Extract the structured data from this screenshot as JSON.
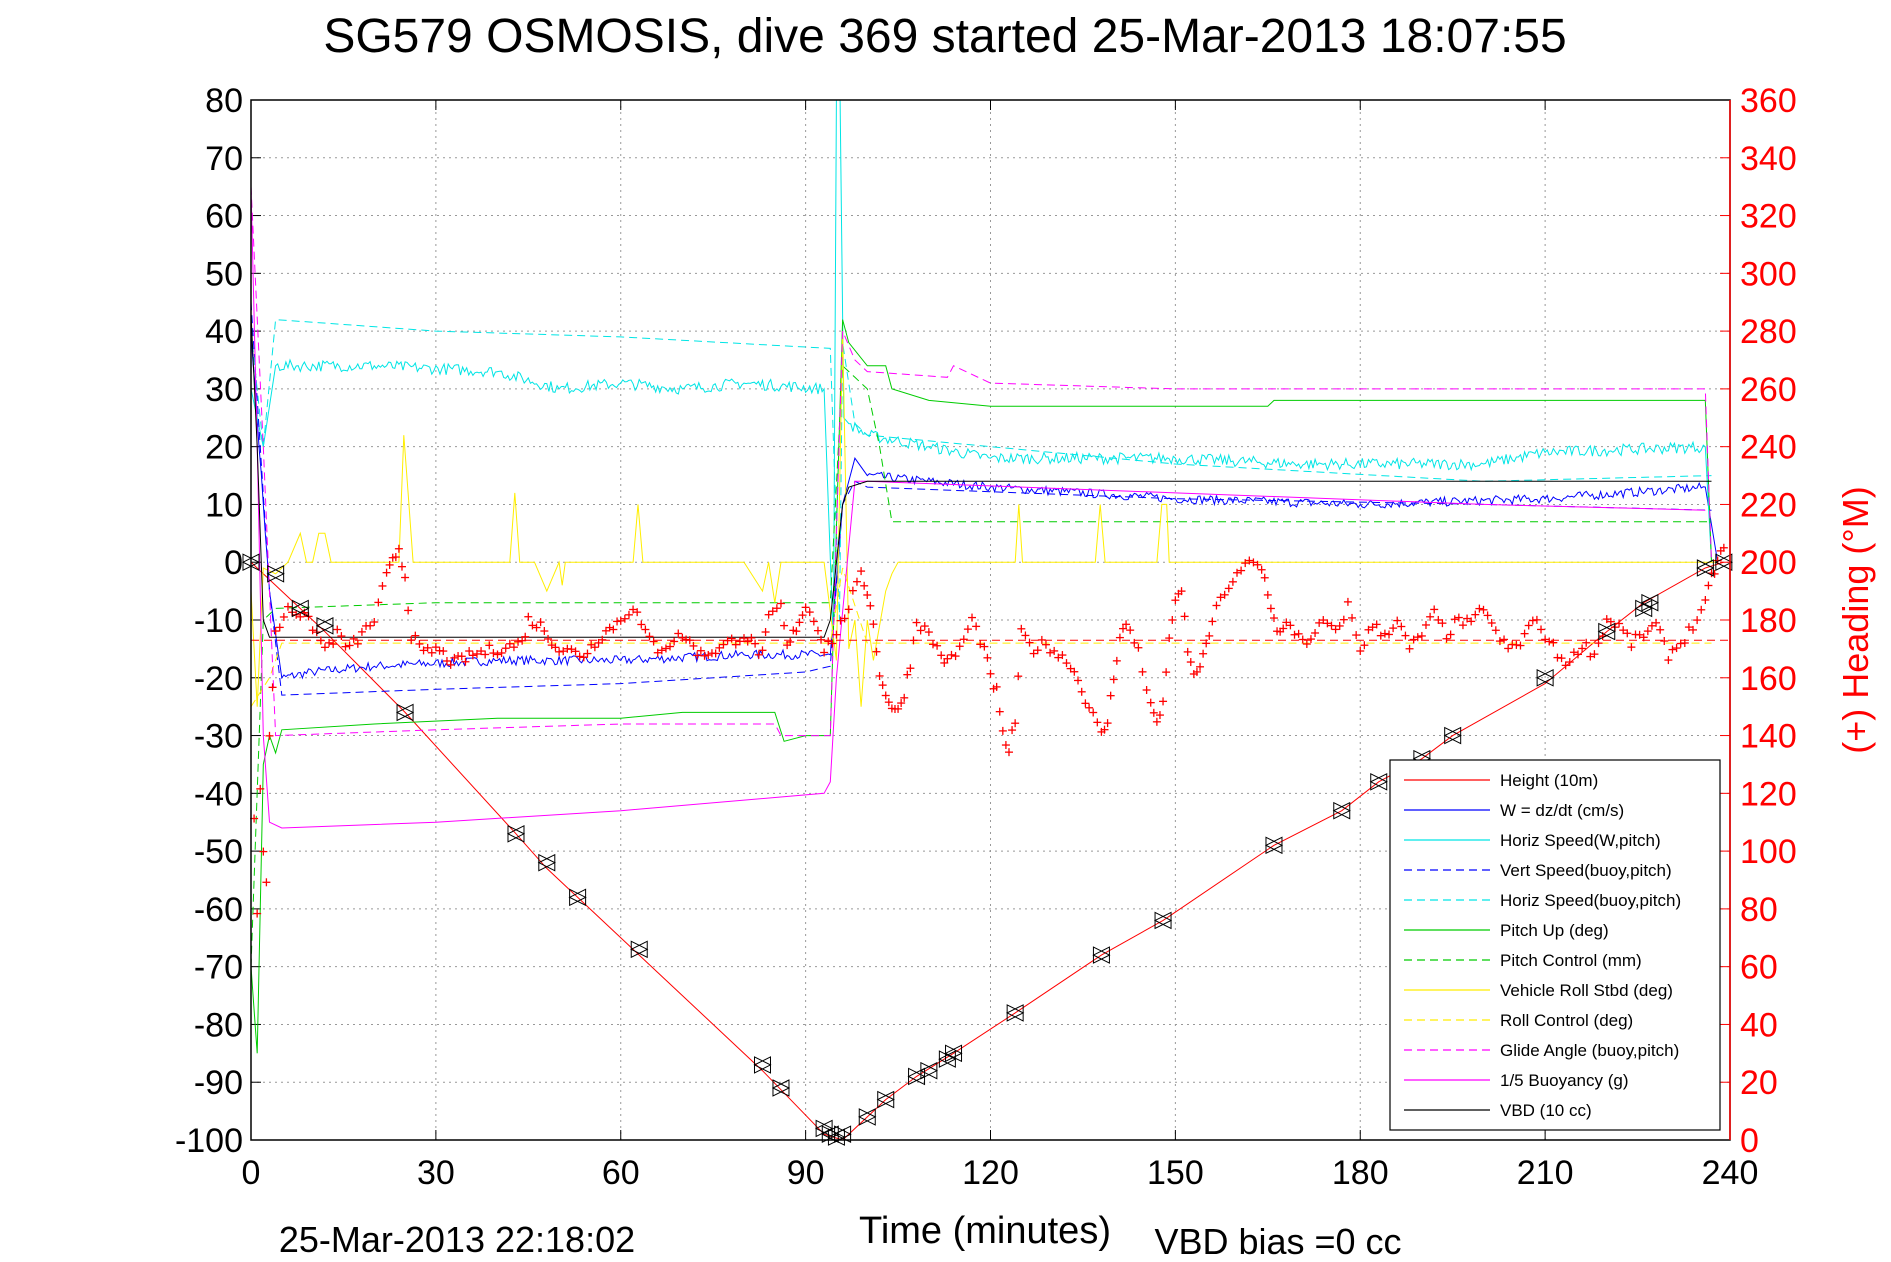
{
  "chart_data": {
    "type": "line",
    "title": "SG579 OSMOSIS, dive 369 started 25-Mar-2013 18:07:55",
    "xlabel": "Time (minutes)",
    "ylabel_right": "(+) Heading (°M)",
    "footer_left": "25-Mar-2013 22:18:02",
    "footer_right": "VBD bias =0 cc",
    "xlim": [
      0,
      240
    ],
    "ylim": [
      -100,
      80
    ],
    "ylim_right": [
      0,
      360
    ],
    "x_ticks": [
      "0",
      "30",
      "60",
      "90",
      "120",
      "150",
      "180",
      "210",
      "240"
    ],
    "y_ticks": [
      "80",
      "70",
      "60",
      "50",
      "40",
      "30",
      "20",
      "10",
      "0",
      "-10",
      "-20",
      "-30",
      "-40",
      "-50",
      "-60",
      "-70",
      "-80",
      "-90",
      "-100"
    ],
    "y_ticks_right": [
      "360",
      "340",
      "320",
      "300",
      "280",
      "260",
      "240",
      "220",
      "200",
      "180",
      "160",
      "140",
      "120",
      "100",
      "80",
      "60",
      "40",
      "20",
      "0"
    ],
    "grid": true,
    "legend_position": "bottom-right",
    "legend": [
      {
        "label": "Height (10m)",
        "color": "#ff0000",
        "dash": "solid"
      },
      {
        "label": "W = dz/dt (cm/s)",
        "color": "#0000ff",
        "dash": "solid"
      },
      {
        "label": "Horiz Speed(W,pitch)",
        "color": "#00e5e5",
        "dash": "solid"
      },
      {
        "label": "Vert Speed(buoy,pitch)",
        "color": "#0000ff",
        "dash": "dashed"
      },
      {
        "label": "Horiz Speed(buoy,pitch)",
        "color": "#00e5e5",
        "dash": "dashed"
      },
      {
        "label": "Pitch Up (deg)",
        "color": "#00cc00",
        "dash": "solid"
      },
      {
        "label": "Pitch Control (mm)",
        "color": "#00cc00",
        "dash": "dashed"
      },
      {
        "label": "Vehicle Roll Stbd (deg)",
        "color": "#ffee00",
        "dash": "solid"
      },
      {
        "label": "Roll Control (deg)",
        "color": "#ffee00",
        "dash": "dashed"
      },
      {
        "label": "Glide Angle (buoy,pitch)",
        "color": "#ff00ff",
        "dash": "dashed"
      },
      {
        "label": "1/5 Buoyancy (g)",
        "color": "#ff00ff",
        "dash": "solid"
      },
      {
        "label": "VBD (10 cc)",
        "color": "#000000",
        "dash": "solid"
      }
    ],
    "series": [
      {
        "key": "height",
        "color": "#ff0000",
        "dash": "solid",
        "width": 1,
        "x": [
          0,
          12,
          25,
          43,
          48,
          53,
          63,
          83,
          93,
          96,
          100,
          103,
          108,
          114,
          124,
          138,
          148,
          166,
          177,
          183,
          190,
          195,
          210,
          220,
          226,
          236,
          239
        ],
        "y": [
          0,
          -12,
          -26,
          -47,
          -53,
          -58,
          -68,
          -88,
          -99,
          -100,
          -96,
          -93,
          -89,
          -85,
          -78,
          -68,
          -62,
          -49,
          -43,
          -38,
          -34,
          -30,
          -21,
          -12,
          -7,
          -1,
          0
        ]
      },
      {
        "key": "w",
        "color": "#0000ff",
        "dash": "solid",
        "width": 1,
        "noise": 0.8,
        "x": [
          0,
          3,
          5,
          10,
          20,
          40,
          60,
          80,
          94,
          96,
          98,
          100,
          120,
          150,
          180,
          210,
          236,
          238
        ],
        "y": [
          40,
          -5,
          -20,
          -19,
          -18,
          -17,
          -17,
          -16,
          -16,
          10,
          18,
          15,
          13,
          11,
          10,
          11,
          13,
          0
        ]
      },
      {
        "key": "horiz_w",
        "color": "#00e5e5",
        "dash": "solid",
        "width": 1,
        "noise": 1.0,
        "x": [
          0,
          2,
          4,
          20,
          40,
          50,
          60,
          70,
          80,
          93,
          94.5,
          95,
          95.6,
          96.2,
          97,
          100,
          110,
          120,
          150,
          170,
          200,
          210,
          236,
          237
        ],
        "y": [
          30,
          20,
          34,
          34,
          33,
          30,
          31,
          30,
          31,
          30,
          -14,
          80,
          80,
          25,
          24,
          22,
          20,
          18,
          18,
          17,
          17,
          19,
          20,
          0
        ]
      },
      {
        "key": "vert_buoy",
        "color": "#0000ff",
        "dash": "dashed",
        "width": 1,
        "x": [
          0,
          3,
          5,
          30,
          60,
          90,
          94,
          96,
          98,
          100,
          150,
          200,
          237
        ],
        "y": [
          45,
          -5,
          -23,
          -22,
          -21,
          -19,
          -18,
          10,
          14,
          13,
          11,
          10,
          9
        ]
      },
      {
        "key": "horiz_buoy",
        "color": "#00e5e5",
        "dash": "dashed",
        "width": 1,
        "x": [
          0,
          2,
          4,
          30,
          60,
          94,
          95.5,
          96,
          98,
          100,
          150,
          200,
          237
        ],
        "y": [
          40,
          20,
          42,
          40,
          39,
          37,
          -10,
          38,
          24,
          22,
          17,
          14,
          15
        ]
      },
      {
        "key": "pitch",
        "color": "#00cc00",
        "dash": "solid",
        "width": 1,
        "x": [
          0,
          1,
          2,
          3,
          4,
          5,
          20,
          40,
          60,
          70,
          80,
          85,
          86.5,
          90,
          94,
          96,
          97,
          100,
          103,
          104,
          110,
          120,
          140,
          165,
          166,
          200,
          236,
          237
        ],
        "y": [
          -70,
          -85,
          -35,
          -30,
          -33,
          -29,
          -28,
          -27,
          -27,
          -26,
          -26,
          -26,
          -31,
          -30,
          -30,
          42,
          38,
          34,
          34,
          30,
          28,
          27,
          27,
          27,
          28,
          28,
          28,
          0
        ]
      },
      {
        "key": "pitch_ctrl",
        "color": "#00cc00",
        "dash": "dashed",
        "width": 1,
        "x": [
          0,
          2,
          4,
          30,
          60,
          94,
          96,
          98,
          100,
          102,
          104,
          150,
          200,
          237
        ],
        "y": [
          -70,
          -10,
          -8,
          -7,
          -7,
          -7,
          34,
          32,
          30,
          20,
          7,
          7,
          7,
          7
        ]
      },
      {
        "key": "roll",
        "color": "#ffee00",
        "dash": "solid",
        "width": 1,
        "x": [
          0,
          1,
          2,
          4,
          6,
          8,
          9,
          10,
          11,
          12,
          13,
          20,
          24,
          24.8,
          25.5,
          26.3,
          28,
          40,
          42,
          42.8,
          43.6,
          46,
          48,
          50,
          50.5,
          51,
          52,
          60,
          62,
          62.8,
          63.6,
          65,
          70,
          80,
          83,
          84,
          85,
          86,
          88,
          93,
          95,
          96,
          97,
          98,
          99,
          100,
          101,
          103,
          104,
          105,
          110,
          120,
          124,
          124.6,
          125.2,
          126,
          137,
          137.8,
          138.6,
          139.4,
          146,
          147,
          147.8,
          148.6,
          149,
          150,
          160,
          170,
          180,
          190,
          200,
          210,
          220,
          230,
          236,
          238
        ],
        "y": [
          -5,
          -25,
          -1,
          -2,
          0,
          5,
          0,
          0,
          5,
          5,
          0,
          0,
          0,
          22,
          12,
          0,
          0,
          0,
          0,
          12,
          0,
          0,
          -5,
          0,
          -4,
          0,
          0,
          0,
          0,
          10,
          0,
          0,
          0,
          0,
          -5,
          0,
          -7,
          0,
          0,
          0,
          -17,
          40,
          -15,
          -10,
          -25,
          -10,
          -17,
          -5,
          -2,
          0,
          0,
          0,
          0,
          10,
          0,
          0,
          0,
          10,
          0,
          0,
          0,
          0,
          10,
          10,
          0,
          0,
          0,
          0,
          0,
          0,
          0,
          0,
          0,
          0,
          0,
          0
        ]
      },
      {
        "key": "roll_ctrl",
        "color": "#ffee00",
        "dash": "dashed",
        "width": 1,
        "x": [
          0,
          3,
          5,
          90,
          94,
          96,
          100,
          237
        ],
        "y": [
          -25,
          -20,
          -14,
          -14,
          -14,
          -1,
          -14,
          -14
        ]
      },
      {
        "key": "glide",
        "color": "#ff00ff",
        "dash": "dashed",
        "width": 1,
        "x": [
          0,
          2,
          4,
          30,
          60,
          85,
          86,
          90,
          94,
          96,
          98,
          100,
          113,
          114,
          120,
          150,
          166,
          167,
          200,
          236,
          237
        ],
        "y": [
          65,
          20,
          -30,
          -29,
          -28,
          -28,
          -30,
          -30,
          -30,
          40,
          35,
          33,
          32,
          34,
          31,
          30,
          30,
          30,
          30,
          30,
          0
        ]
      },
      {
        "key": "buoyancy",
        "color": "#ff00ff",
        "dash": "solid",
        "width": 1,
        "x": [
          0,
          1,
          2,
          3,
          5,
          30,
          60,
          93,
          94,
          95,
          98,
          100,
          150,
          200,
          236
        ],
        "y": [
          65,
          20,
          -30,
          -45,
          -46,
          -45,
          -43,
          -40,
          -38,
          -20,
          14,
          14,
          12,
          10,
          9
        ]
      },
      {
        "key": "vbd",
        "color": "#000000",
        "dash": "solid",
        "width": 1,
        "x": [
          0,
          1,
          2,
          3,
          5,
          60,
          93,
          94,
          96,
          97,
          100,
          237
        ],
        "y": [
          43,
          20,
          -10,
          -13,
          -13,
          -13,
          -13,
          -10,
          10,
          13,
          14,
          14
        ]
      },
      {
        "key": "roll_ctrl_ref",
        "color": "#ff0000",
        "dash": "dashed",
        "width": 1,
        "x": [
          0,
          240
        ],
        "y": [
          -13.5,
          -13.5
        ]
      }
    ],
    "triangles": {
      "color": "#000000",
      "x": [
        0,
        4,
        8,
        12,
        25,
        43,
        48,
        53,
        63,
        83,
        86,
        93,
        94,
        95,
        96,
        100,
        103,
        108,
        110,
        113,
        114,
        124,
        138,
        148,
        166,
        177,
        183,
        190,
        195,
        210,
        220,
        226,
        227,
        236,
        239
      ],
      "y": [
        0,
        -2,
        -8,
        -11,
        -26,
        -47,
        -52,
        -58,
        -67,
        -87,
        -91,
        -98,
        -99,
        -99.5,
        -99,
        -96,
        -93,
        -89,
        -88,
        -86,
        -85,
        -78,
        -68,
        -62,
        -49,
        -43,
        -38,
        -34,
        -30,
        -20,
        -12,
        -8,
        -7,
        -1,
        0
      ]
    },
    "heading": {
      "color": "#ff0000",
      "marker": "+",
      "x": [
        0.5,
        1,
        1.5,
        2,
        2.5,
        3,
        4,
        6,
        8,
        10,
        12,
        14,
        16,
        18,
        20,
        22,
        23,
        24,
        25,
        26,
        28,
        30,
        33,
        36,
        40,
        44,
        45,
        47,
        50,
        54,
        57,
        60,
        62,
        64,
        66,
        68,
        70,
        73,
        76,
        80,
        83,
        84,
        86,
        87,
        88,
        89,
        90,
        92,
        93,
        95,
        97,
        99,
        100,
        101,
        102,
        103,
        104,
        105,
        106,
        107,
        108,
        110,
        112,
        113,
        115,
        117,
        119,
        120,
        121,
        122,
        123,
        124,
        125,
        127,
        129,
        131,
        133,
        136,
        138,
        139,
        140,
        141,
        142,
        144,
        146,
        147,
        148,
        149,
        150,
        151,
        152,
        153,
        154,
        155,
        156,
        158,
        160,
        162,
        164,
        165,
        166,
        167,
        168,
        170,
        172,
        174,
        176,
        178,
        180,
        182,
        184,
        186,
        188,
        190,
        192,
        194,
        196,
        198,
        200,
        202,
        204,
        206,
        208,
        210,
        212,
        214,
        216,
        218,
        220,
        222,
        224,
        226,
        228,
        230,
        232,
        234,
        236,
        237,
        238,
        239
      ],
      "y": [
        110,
        80,
        120,
        100,
        90,
        140,
        175,
        185,
        182,
        178,
        170,
        175,
        170,
        175,
        180,
        195,
        200,
        205,
        195,
        175,
        168,
        170,
        165,
        168,
        170,
        172,
        180,
        178,
        170,
        168,
        175,
        180,
        185,
        175,
        170,
        172,
        175,
        168,
        170,
        175,
        168,
        180,
        185,
        170,
        175,
        180,
        185,
        178,
        170,
        175,
        185,
        195,
        190,
        180,
        160,
        155,
        150,
        148,
        155,
        165,
        180,
        175,
        168,
        165,
        170,
        180,
        170,
        160,
        155,
        140,
        135,
        145,
        175,
        170,
        172,
        168,
        165,
        150,
        140,
        145,
        160,
        175,
        178,
        170,
        150,
        145,
        150,
        175,
        185,
        190,
        170,
        160,
        165,
        170,
        180,
        190,
        195,
        200,
        198,
        190,
        180,
        175,
        178,
        175,
        172,
        180,
        175,
        185,
        170,
        178,
        175,
        180,
        170,
        175,
        182,
        175,
        180,
        178,
        185,
        175,
        170,
        172,
        180,
        175,
        168,
        165,
        172,
        168,
        180,
        178,
        172,
        175,
        178,
        168,
        172,
        178,
        185,
        195,
        200,
        205
      ]
    }
  }
}
